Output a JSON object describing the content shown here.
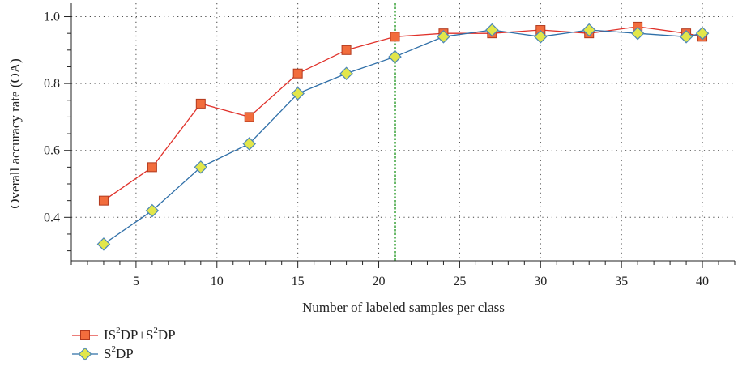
{
  "chart_data": {
    "type": "line",
    "xlabel": "Number of labeled samples per class",
    "ylabel": "Overall accuracy rate (OA)",
    "xlim": [
      1,
      42
    ],
    "ylim": [
      0.27,
      1.04
    ],
    "x_ticks": [
      5,
      10,
      15,
      20,
      25,
      30,
      35,
      40
    ],
    "y_ticks": [
      0.4,
      0.6,
      0.8,
      1.0
    ],
    "y_tick_labels": [
      "0.4",
      "0.6",
      "0.8",
      "1.0"
    ],
    "grid": true,
    "reference_line_x": 21,
    "legend_position": "bottom-left",
    "x": [
      3,
      6,
      9,
      12,
      15,
      18,
      21,
      24,
      27,
      30,
      33,
      36,
      39,
      40
    ],
    "series": [
      {
        "name_parts": [
          "IS",
          "2",
          "DP+S",
          "2",
          "DP"
        ],
        "marker": "square",
        "line_color": "#e0312a",
        "marker_fill": "#f26d3d",
        "marker_stroke": "#b23a1e",
        "values": [
          0.45,
          0.55,
          0.74,
          0.7,
          0.83,
          0.9,
          0.94,
          0.95,
          0.95,
          0.96,
          0.95,
          0.97,
          0.95,
          0.94
        ]
      },
      {
        "name_parts": [
          "S",
          "2",
          "DP"
        ],
        "marker": "diamond",
        "line_color": "#2f6fa8",
        "marker_fill": "#e2e64a",
        "marker_stroke": "#4b87b8",
        "values": [
          0.32,
          0.42,
          0.55,
          0.62,
          0.77,
          0.83,
          0.88,
          0.94,
          0.96,
          0.94,
          0.96,
          0.95,
          0.94,
          0.95
        ]
      }
    ]
  },
  "colors": {
    "reference_line": "#3aa33a",
    "grid": "#444444",
    "axis": "#222222"
  }
}
